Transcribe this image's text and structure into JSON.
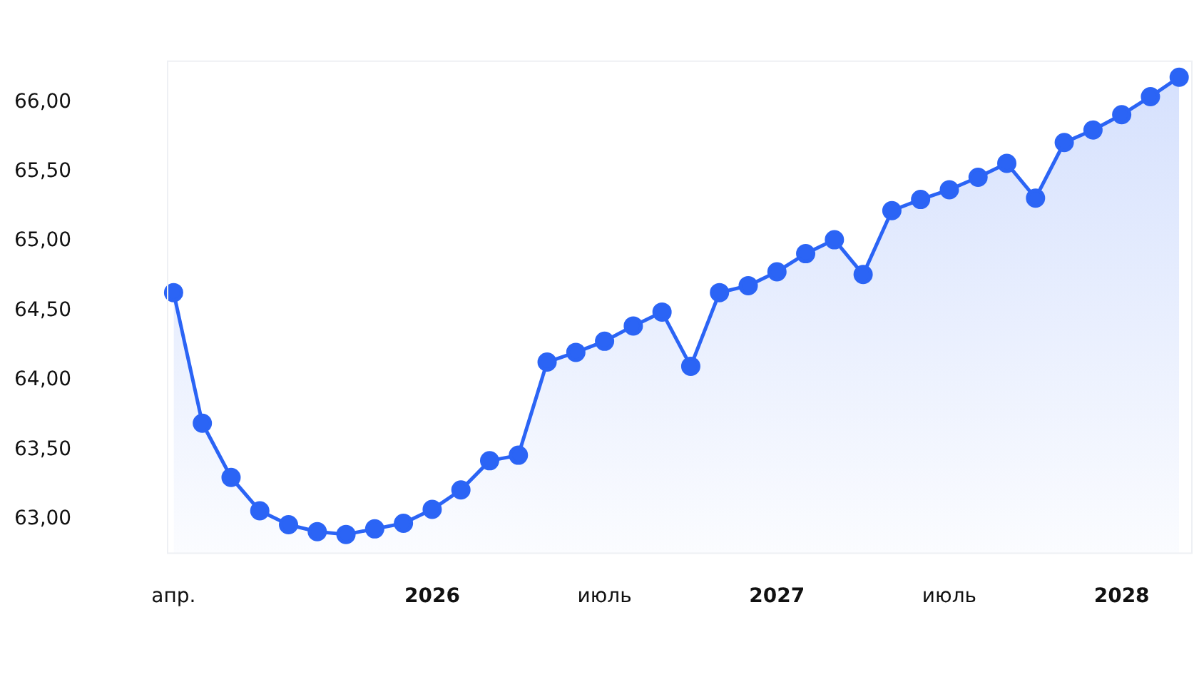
{
  "chart_data": {
    "type": "area",
    "x": [
      "2025-04",
      "2025-05",
      "2025-06",
      "2025-07",
      "2025-08",
      "2025-09",
      "2025-10",
      "2025-11",
      "2025-12",
      "2026-01",
      "2026-02",
      "2026-03",
      "2026-04",
      "2026-05",
      "2026-06",
      "2026-07",
      "2026-08",
      "2026-09",
      "2026-10",
      "2026-11",
      "2026-12",
      "2027-01",
      "2027-02",
      "2027-03",
      "2027-04",
      "2027-05",
      "2027-06",
      "2027-07",
      "2027-08",
      "2027-09",
      "2027-10",
      "2027-11",
      "2027-12",
      "2028-01",
      "2028-02",
      "2028-03"
    ],
    "series": [
      {
        "color": "#2b64f5",
        "values": [
          64.63,
          63.69,
          63.3,
          63.06,
          62.96,
          62.91,
          62.89,
          62.93,
          62.97,
          63.07,
          63.21,
          63.42,
          63.46,
          64.13,
          64.2,
          64.28,
          64.39,
          64.49,
          64.1,
          64.63,
          64.68,
          64.78,
          64.91,
          65.01,
          64.76,
          65.22,
          65.3,
          65.37,
          65.46,
          65.56,
          65.31,
          65.71,
          65.8,
          65.91,
          66.04,
          66.18
        ]
      }
    ],
    "xlim": [
      "2025-03-24",
      "2028-03-15"
    ],
    "xticks": [
      {
        "value": "2025-04",
        "label": "апр."
      },
      {
        "value": "2026-01",
        "label": "2026"
      },
      {
        "value": "2026-07",
        "label": "июль"
      },
      {
        "value": "2027-01",
        "label": "2027"
      },
      {
        "value": "2027-07",
        "label": "июль"
      },
      {
        "value": "2028-01",
        "label": "2028"
      }
    ],
    "ylim": [
      62.75,
      66.3
    ],
    "yticks": [
      {
        "value": 63,
        "label": "63,00"
      },
      {
        "value": 63.5,
        "label": "63,50"
      },
      {
        "value": 64,
        "label": "64,00"
      },
      {
        "value": 64.5,
        "label": "64,50"
      },
      {
        "value": 65,
        "label": "65,00"
      },
      {
        "value": 65.5,
        "label": "65,50"
      },
      {
        "value": 66,
        "label": "66,00"
      }
    ],
    "grid": false,
    "legend": false,
    "marker": "circle",
    "line_style": "solid"
  }
}
